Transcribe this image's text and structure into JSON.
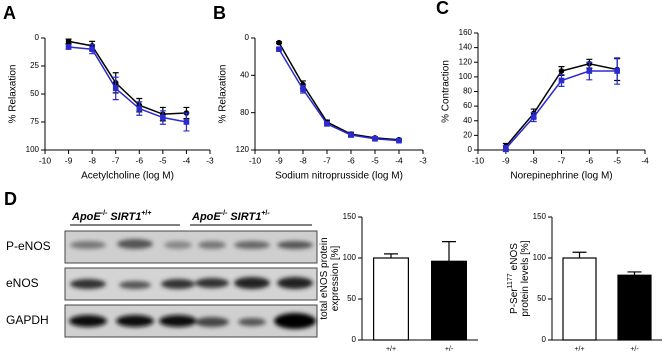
{
  "chart_data": [
    {
      "type": "line",
      "panel": "A",
      "xlabel": "Acetylcholine (log M)",
      "ylabel": "% Relaxation",
      "x": [
        -9,
        -8,
        -7,
        -6,
        -5,
        -4
      ],
      "xlim": [
        -10,
        -3
      ],
      "xticks": [
        -10,
        -9,
        -8,
        -7,
        -6,
        -5,
        -4,
        -3
      ],
      "ylim": [
        0,
        100
      ],
      "yticks": [
        0,
        25,
        50,
        75,
        100
      ],
      "y_inverted": true,
      "series": [
        {
          "color": "#000000",
          "marker": "circle",
          "values": [
            3,
            7,
            40,
            60,
            68,
            67
          ],
          "errors": [
            2,
            4,
            9,
            6,
            6,
            5
          ]
        },
        {
          "color": "#2b2bd0",
          "marker": "square",
          "values": [
            8,
            10,
            45,
            63,
            71,
            75
          ],
          "errors": [
            2,
            4,
            10,
            6,
            6,
            8
          ]
        }
      ]
    },
    {
      "type": "line",
      "panel": "B",
      "xlabel": "Sodium nitroprusside (log M)",
      "ylabel": "% Relaxation",
      "x": [
        -9,
        -8,
        -7,
        -6,
        -5,
        -4
      ],
      "xlim": [
        -10,
        -3
      ],
      "xticks": [
        -10,
        -9,
        -8,
        -7,
        -6,
        -5,
        -4,
        -3
      ],
      "ylim": [
        0,
        120
      ],
      "yticks": [
        0,
        40,
        80,
        120
      ],
      "y_inverted": true,
      "series": [
        {
          "color": "#000000",
          "marker": "circle",
          "values": [
            5,
            50,
            90,
            103,
            107,
            109
          ],
          "errors": [
            1,
            4,
            2,
            2,
            1,
            1
          ]
        },
        {
          "color": "#2b2bd0",
          "marker": "square",
          "values": [
            12,
            55,
            92,
            104,
            108,
            110
          ],
          "errors": [
            1,
            4,
            2,
            2,
            1,
            1
          ]
        }
      ]
    },
    {
      "type": "line",
      "panel": "C",
      "xlabel": "Norepinephrine (log M)",
      "ylabel": "% Contraction",
      "x": [
        -9,
        -8,
        -7,
        -6,
        -5
      ],
      "xlim": [
        -10,
        -4
      ],
      "xticks": [
        -10,
        -9,
        -8,
        -7,
        -6,
        -5,
        -4
      ],
      "ylim": [
        0,
        160
      ],
      "yticks": [
        0,
        20,
        40,
        60,
        80,
        100,
        120,
        140,
        160
      ],
      "y_inverted": false,
      "series": [
        {
          "color": "#000000",
          "marker": "circle",
          "values": [
            5,
            50,
            108,
            118,
            110
          ],
          "errors": [
            4,
            6,
            6,
            6,
            15
          ]
        },
        {
          "color": "#2b2bd0",
          "marker": "square",
          "values": [
            2,
            45,
            95,
            108,
            108
          ],
          "errors": [
            4,
            6,
            8,
            12,
            18
          ]
        }
      ]
    },
    {
      "type": "bar",
      "categories": [
        "+/+",
        "+/-"
      ],
      "values": [
        100,
        96
      ],
      "errors": [
        5,
        24
      ],
      "colors": [
        "#ffffff",
        "#000000"
      ],
      "ylim": [
        0,
        150
      ],
      "yticks": [
        0,
        50,
        100,
        150
      ],
      "ylabel_lines": [
        [
          {
            "text": "total eNOS protein"
          }
        ],
        [
          {
            "text": "expression [%]"
          }
        ]
      ]
    },
    {
      "type": "bar",
      "categories": [
        "+/+",
        "+/-"
      ],
      "values": [
        100,
        79
      ],
      "errors": [
        7,
        4
      ],
      "colors": [
        "#ffffff",
        "#000000"
      ],
      "ylim": [
        0,
        150
      ],
      "yticks": [
        0,
        50,
        100,
        150
      ],
      "ylabel_lines": [
        [
          {
            "text": "P-Ser"
          },
          {
            "text": "1177",
            "sup": true
          },
          {
            "text": "eNOS"
          }
        ],
        [
          {
            "text": "protein levels [%]"
          }
        ]
      ]
    }
  ],
  "blot": {
    "panel": "D",
    "groups": [
      [
        {
          "text": "ApoE",
          "italic": true
        },
        {
          "text": "-/-",
          "sup": true
        },
        {
          "text": "SIRT1",
          "italic": true
        },
        {
          "text": "+/+",
          "sup": true
        }
      ],
      [
        {
          "text": "ApoE",
          "italic": true
        },
        {
          "text": "-/-",
          "sup": true
        },
        {
          "text": "SIRT1",
          "italic": true
        },
        {
          "text": "+/-",
          "sup": true
        }
      ]
    ],
    "rows": [
      "P-eNOS",
      "eNOS",
      "GAPDH"
    ]
  }
}
